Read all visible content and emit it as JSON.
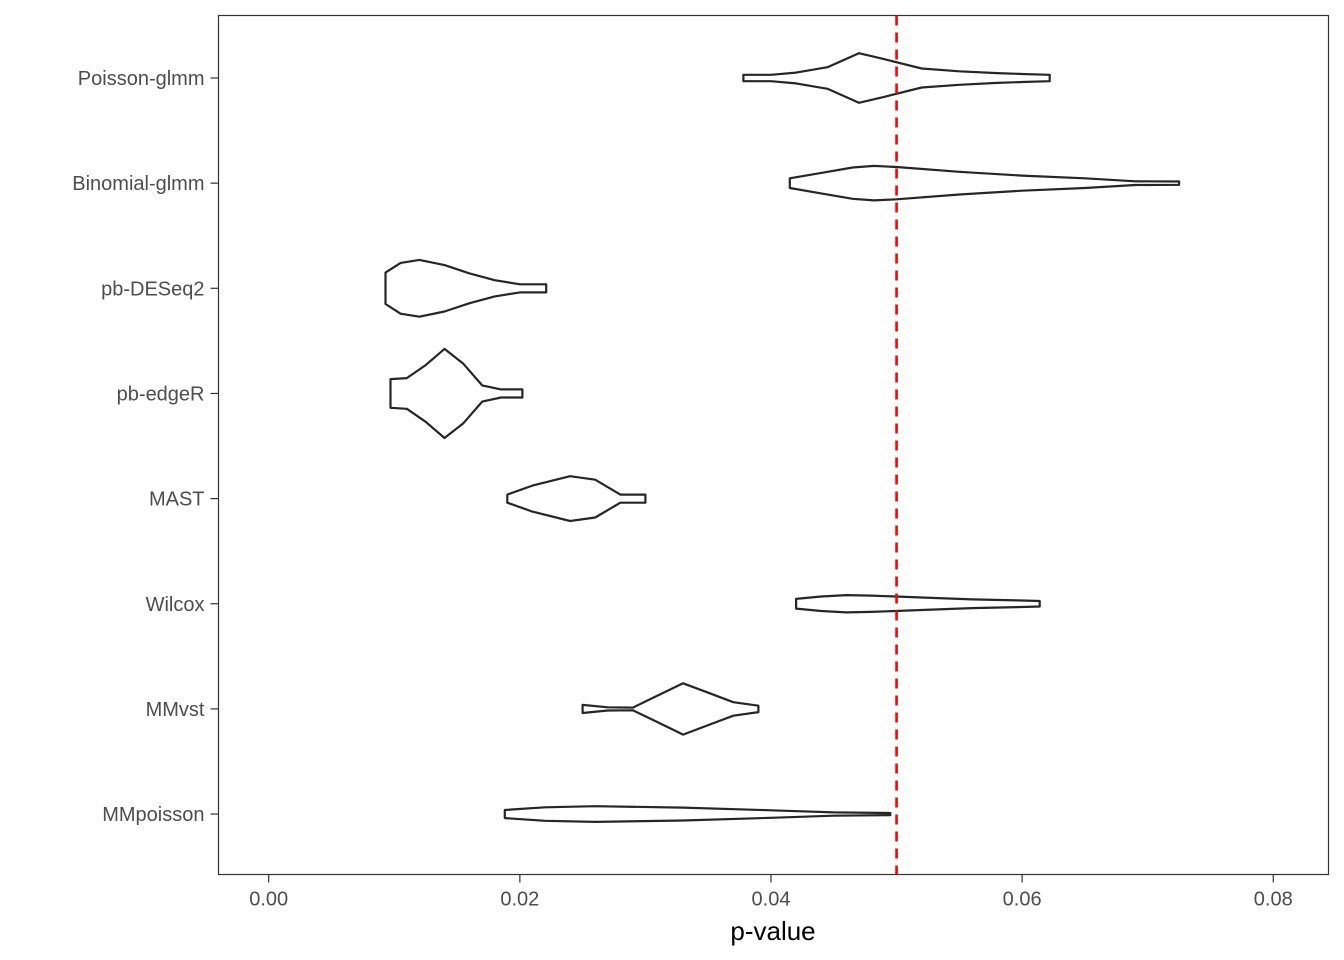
{
  "chart_data": {
    "type": "violin",
    "orientation": "horizontal",
    "xlabel": "p-value",
    "ylabel": "",
    "xlim": [
      -0.004,
      0.0844
    ],
    "x_ticks": [
      0.0,
      0.02,
      0.04,
      0.06,
      0.08
    ],
    "x_tick_labels": [
      "0.00",
      "0.02",
      "0.04",
      "0.06",
      "0.08"
    ],
    "reference_line": {
      "x": 0.05,
      "style": "dashed",
      "color": "#ff0000"
    },
    "grid": false,
    "outline_color": "#262626",
    "series": [
      {
        "category": "Poisson-glmm",
        "profile": [
          [
            0.0378,
            0.12
          ],
          [
            0.04,
            0.12
          ],
          [
            0.042,
            0.2
          ],
          [
            0.0445,
            0.4
          ],
          [
            0.047,
            0.92
          ],
          [
            0.049,
            0.7
          ],
          [
            0.052,
            0.35
          ],
          [
            0.055,
            0.25
          ],
          [
            0.058,
            0.18
          ],
          [
            0.06,
            0.15
          ],
          [
            0.0622,
            0.12
          ]
        ]
      },
      {
        "category": "Binomial-glmm",
        "profile": [
          [
            0.0415,
            0.18
          ],
          [
            0.044,
            0.38
          ],
          [
            0.0465,
            0.58
          ],
          [
            0.0482,
            0.64
          ],
          [
            0.05,
            0.6
          ],
          [
            0.055,
            0.42
          ],
          [
            0.06,
            0.28
          ],
          [
            0.065,
            0.18
          ],
          [
            0.069,
            0.07
          ],
          [
            0.0725,
            0.06
          ]
        ]
      },
      {
        "category": "pb-DESeq2",
        "profile": [
          [
            0.0093,
            0.58
          ],
          [
            0.0105,
            0.94
          ],
          [
            0.012,
            1.05
          ],
          [
            0.014,
            0.86
          ],
          [
            0.016,
            0.55
          ],
          [
            0.018,
            0.3
          ],
          [
            0.02,
            0.15
          ],
          [
            0.0221,
            0.15
          ]
        ]
      },
      {
        "category": "pb-edgeR",
        "profile": [
          [
            0.0097,
            0.53
          ],
          [
            0.011,
            0.57
          ],
          [
            0.0125,
            1.05
          ],
          [
            0.014,
            1.65
          ],
          [
            0.0155,
            1.1
          ],
          [
            0.017,
            0.3
          ],
          [
            0.0185,
            0.15
          ],
          [
            0.0202,
            0.15
          ]
        ]
      },
      {
        "category": "MAST",
        "profile": [
          [
            0.019,
            0.15
          ],
          [
            0.021,
            0.48
          ],
          [
            0.024,
            0.83
          ],
          [
            0.026,
            0.7
          ],
          [
            0.028,
            0.15
          ],
          [
            0.03,
            0.15
          ]
        ]
      },
      {
        "category": "Wilcox",
        "profile": [
          [
            0.042,
            0.18
          ],
          [
            0.044,
            0.27
          ],
          [
            0.046,
            0.32
          ],
          [
            0.048,
            0.3
          ],
          [
            0.052,
            0.23
          ],
          [
            0.056,
            0.16
          ],
          [
            0.06,
            0.12
          ],
          [
            0.0614,
            0.1
          ]
        ]
      },
      {
        "category": "MMvst",
        "profile": [
          [
            0.025,
            0.15
          ],
          [
            0.027,
            0.06
          ],
          [
            0.029,
            0.05
          ],
          [
            0.031,
            0.5
          ],
          [
            0.033,
            0.95
          ],
          [
            0.035,
            0.6
          ],
          [
            0.037,
            0.25
          ],
          [
            0.039,
            0.12
          ]
        ]
      },
      {
        "category": "MMpoisson",
        "profile": [
          [
            0.0188,
            0.15
          ],
          [
            0.022,
            0.25
          ],
          [
            0.026,
            0.29
          ],
          [
            0.033,
            0.24
          ],
          [
            0.04,
            0.14
          ],
          [
            0.045,
            0.06
          ],
          [
            0.0495,
            0.04
          ]
        ]
      }
    ]
  }
}
